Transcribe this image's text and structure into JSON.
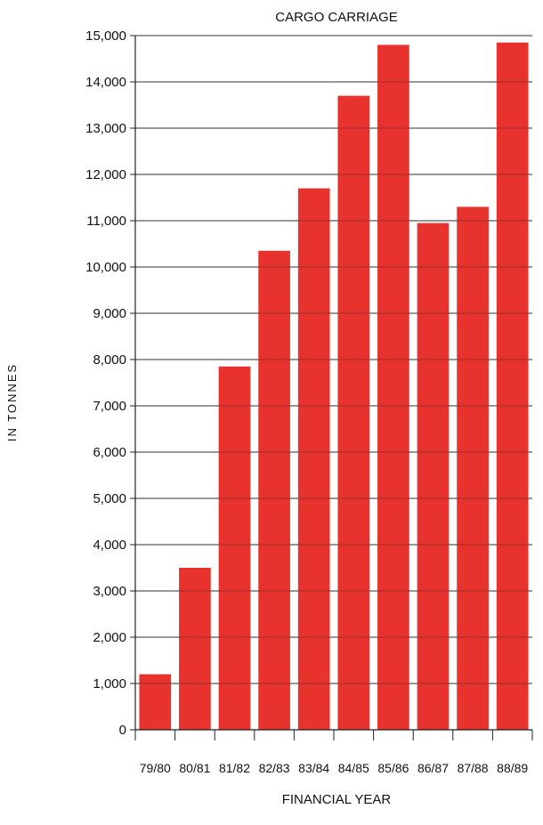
{
  "chart_data": {
    "type": "bar",
    "title": "CARGO CARRIAGE",
    "xlabel": "FINANCIAL YEAR",
    "ylabel": "IN TONNES",
    "categories": [
      "79/80",
      "80/81",
      "81/82",
      "82/83",
      "83/84",
      "84/85",
      "85/86",
      "86/87",
      "87/88",
      "88/89"
    ],
    "values": [
      1200,
      3500,
      7850,
      10350,
      11700,
      13700,
      14800,
      10950,
      11300,
      14850
    ],
    "ylim": [
      0,
      15000
    ],
    "y_ticks": [
      "0",
      "1,000",
      "2,000",
      "3,000",
      "4,000",
      "5,000",
      "6,000",
      "7,000",
      "8,000",
      "9,000",
      "10,000",
      "11,000",
      "12,000",
      "13,000",
      "14,000",
      "15,000"
    ],
    "grid": true,
    "bar_color": "#e8322e"
  }
}
